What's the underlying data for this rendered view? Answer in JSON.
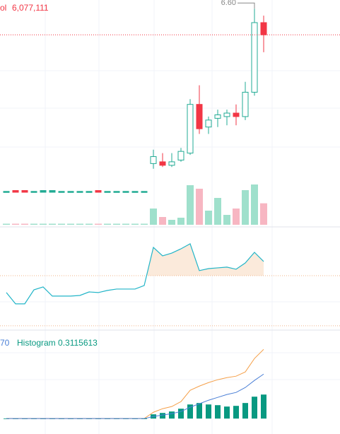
{
  "chart_data": [
    {
      "type": "candlestick",
      "x": [
        null,
        null,
        null,
        null,
        null,
        null,
        null,
        null,
        null,
        null,
        null,
        null,
        null,
        null,
        null,
        null,
        null,
        null,
        null,
        null,
        null,
        null,
        null,
        null,
        null,
        null,
        null,
        null,
        null
      ],
      "open": [
        5.55,
        5.555,
        5.555,
        5.55,
        5.545,
        5.545,
        5.55,
        5.55,
        5.55,
        5.55,
        5.555,
        5.55,
        5.55,
        5.55,
        5.55,
        5.55,
        5.71,
        5.72,
        5.7,
        5.73,
        5.77,
        6.05,
        5.92,
        5.97,
        5.98,
        6.0,
        5.98,
        6.12,
        6.52
      ],
      "high": [
        5.55,
        5.555,
        5.555,
        5.55,
        5.555,
        5.555,
        5.55,
        5.55,
        5.55,
        5.55,
        5.555,
        5.55,
        5.55,
        5.55,
        5.55,
        5.55,
        5.79,
        5.77,
        5.77,
        5.8,
        6.08,
        6.16,
        5.98,
        6.02,
        6.02,
        6.05,
        6.18,
        6.6,
        6.56
      ],
      "low": [
        5.55,
        5.545,
        5.545,
        5.55,
        5.545,
        5.545,
        5.55,
        5.55,
        5.55,
        5.55,
        5.545,
        5.55,
        5.55,
        5.55,
        5.55,
        5.55,
        5.68,
        5.69,
        5.69,
        5.72,
        5.76,
        5.88,
        5.88,
        5.92,
        5.93,
        5.93,
        5.96,
        6.1,
        6.35
      ],
      "close": [
        5.55,
        5.545,
        5.545,
        5.55,
        5.555,
        5.555,
        5.55,
        5.55,
        5.55,
        5.55,
        5.545,
        5.55,
        5.55,
        5.55,
        5.55,
        5.55,
        5.75,
        5.7,
        5.72,
        5.78,
        6.05,
        5.91,
        5.96,
        5.99,
        6.0,
        5.98,
        6.12,
        6.52,
        6.45
      ],
      "up_color": "#22ab94",
      "down_color": "#f23645",
      "ylim": [
        5.35,
        6.65
      ],
      "max_label": {
        "value": 6.6,
        "label": "6.60"
      },
      "volume": {
        "name": "ol",
        "up_color": "#9fe0cc",
        "down_color": "#f7b6c2",
        "values": [
          300000,
          300000,
          300000,
          300000,
          300000,
          300000,
          300000,
          300000,
          300000,
          300000,
          300000,
          300000,
          300000,
          300000,
          300000,
          300000,
          4600000,
          2200000,
          1400000,
          2000000,
          11200000,
          10200000,
          4000000,
          7600000,
          2800000,
          4600000,
          9800000,
          11400000,
          6077111
        ],
        "legend_value": "6,077,111",
        "ylim": [
          0,
          12000000
        ]
      }
    },
    {
      "type": "line",
      "values": [
        56.5,
        47.5,
        47.5,
        58.7,
        61.0,
        53.7,
        53.7,
        53.7,
        54.2,
        57.0,
        56.5,
        58.2,
        59.3,
        59.3,
        59.3,
        62.1,
        92.5,
        85.8,
        88.0,
        91.4,
        95.4,
        74.0,
        75.6,
        76.2,
        76.8,
        75.1,
        80.1,
        88.6,
        81.3
      ],
      "color": "#22b5c8",
      "fill_color": "#fbeadb",
      "levels": [
        70,
        30
      ],
      "level_color": "#f0b48a",
      "ylim": [
        27.7,
        108.3
      ]
    },
    {
      "type": "macd",
      "legend": [
        "70",
        "Histogram 0.3115613"
      ],
      "series": [
        {
          "name": "Histogram",
          "color": "#089981",
          "values": [
            0,
            0,
            0,
            0,
            0,
            0,
            0,
            0,
            0,
            0,
            0,
            0,
            0,
            0,
            0,
            0,
            0.055,
            0.073,
            0.092,
            0.128,
            0.183,
            0.202,
            0.183,
            0.174,
            0.156,
            0.165,
            0.202,
            0.284,
            0.3115613
          ]
        },
        {
          "color": "#f5a04a",
          "values": [
            0,
            0,
            0,
            0,
            0,
            0,
            0,
            0,
            0,
            0,
            0,
            0,
            0,
            0,
            0,
            0,
            0.082,
            0.128,
            0.156,
            0.22,
            0.367,
            0.421,
            0.467,
            0.504,
            0.531,
            0.55,
            0.605,
            0.779,
            0.898
          ]
        },
        {
          "color": "#4a7fd6",
          "values": [
            0,
            0,
            0,
            0,
            0,
            0,
            0,
            0,
            0,
            0,
            0,
            0,
            0,
            0,
            0,
            0,
            0.027,
            0.046,
            0.064,
            0.092,
            0.147,
            0.192,
            0.238,
            0.275,
            0.312,
            0.339,
            0.403,
            0.495,
            0.577
          ]
        }
      ],
      "ylim": [
        -0.2,
        1.12
      ]
    }
  ]
}
